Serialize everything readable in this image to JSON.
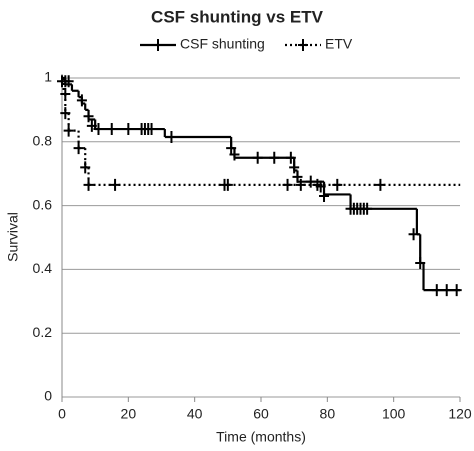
{
  "chart_data": {
    "type": "step",
    "title": "CSF shunting vs ETV",
    "x_label": "Time (months)",
    "y_label": "Survival",
    "xlim": [
      0,
      120
    ],
    "xticks": [
      0,
      20,
      40,
      60,
      80,
      100,
      120
    ],
    "ylim": [
      0,
      1
    ],
    "yticks": [
      0,
      0.2,
      0.4,
      0.6,
      0.8,
      1
    ],
    "grid": true,
    "legend": "top",
    "series": [
      {
        "name": "CSF shunting",
        "color": "#000000",
        "dash": "solid",
        "x": [
          0,
          1,
          3,
          5,
          6,
          7,
          8,
          10,
          31,
          51,
          52,
          70,
          71,
          79,
          87,
          107,
          108,
          109,
          120
        ],
        "values": [
          1,
          0.98,
          0.96,
          0.94,
          0.92,
          0.9,
          0.87,
          0.84,
          0.815,
          0.78,
          0.75,
          0.71,
          0.675,
          0.635,
          0.59,
          0.51,
          0.42,
          0.335,
          0.335
        ],
        "censored": {
          "x": [
            1,
            2,
            6,
            8,
            9,
            11,
            15,
            20,
            24,
            25,
            26,
            27,
            33,
            51,
            52,
            59,
            64,
            69,
            70,
            71,
            75,
            78,
            79,
            87,
            88,
            89,
            90,
            91,
            92,
            106,
            108,
            113,
            116,
            119
          ],
          "values": [
            0.99,
            0.99,
            0.93,
            0.88,
            0.85,
            0.84,
            0.84,
            0.84,
            0.84,
            0.84,
            0.84,
            0.84,
            0.815,
            0.78,
            0.76,
            0.75,
            0.75,
            0.75,
            0.72,
            0.69,
            0.675,
            0.66,
            0.63,
            0.59,
            0.59,
            0.59,
            0.59,
            0.59,
            0.59,
            0.51,
            0.42,
            0.335,
            0.335,
            0.335
          ]
        }
      },
      {
        "name": "ETV",
        "color": "#000000",
        "dash": "dotted",
        "x": [
          0,
          0.5,
          1,
          2,
          5,
          7,
          8,
          120
        ],
        "values": [
          1,
          0.95,
          0.89,
          0.835,
          0.78,
          0.72,
          0.665,
          0.665
        ],
        "censored": {
          "x": [
            0,
            1,
            1,
            2,
            5,
            7,
            8,
            16,
            49,
            50,
            68,
            72,
            77,
            83,
            96
          ],
          "values": [
            0.99,
            0.95,
            0.89,
            0.835,
            0.78,
            0.72,
            0.665,
            0.665,
            0.665,
            0.665,
            0.665,
            0.665,
            0.665,
            0.665,
            0.665
          ]
        }
      }
    ]
  }
}
